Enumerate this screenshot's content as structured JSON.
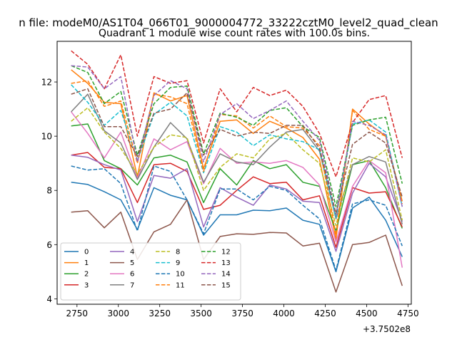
{
  "figure": {
    "suptitle": "n file: modeM0/AS1T04_066T01_9000004772_33222cztM0_level2_quad_clean",
    "title": "Quadrant 1 module wise count rates with 100.0s bins.",
    "offset_label": "+3.7502e8"
  },
  "chart_data": {
    "type": "line",
    "title": "Quadrant 1 module wise count rates with 100.0s bins.",
    "xlabel": "",
    "ylabel": "",
    "xlim": [
      2630,
      4770
    ],
    "ylim": [
      3.8,
      13.5
    ],
    "x_offset": "+3.7502e8",
    "xticks": [
      2750,
      3000,
      3250,
      3500,
      3750,
      4000,
      4250,
      4500,
      4750
    ],
    "yticks": [
      4,
      6,
      8,
      10,
      12
    ],
    "legend_position": "lower-left",
    "x": [
      2715,
      2815,
      2915,
      3015,
      3115,
      3215,
      3315,
      3415,
      3515,
      3615,
      3715,
      3815,
      3915,
      4015,
      4115,
      4215,
      4315,
      4415,
      4515,
      4615,
      4715
    ],
    "series": [
      {
        "name": "0",
        "color": "#1f77b4",
        "dash": "solid",
        "values": [
          8.3,
          8.22,
          7.95,
          7.65,
          6.55,
          8.1,
          7.82,
          7.65,
          6.35,
          7.1,
          7.1,
          7.27,
          7.25,
          7.35,
          6.9,
          6.75,
          5.0,
          7.35,
          7.75,
          6.9,
          5.55
        ]
      },
      {
        "name": "1",
        "color": "#ff7f0e",
        "dash": "solid",
        "values": [
          12.45,
          11.95,
          11.25,
          11.2,
          8.5,
          11.6,
          11.3,
          11.5,
          8.8,
          10.55,
          10.6,
          10.1,
          10.55,
          10.3,
          9.95,
          9.15,
          6.2,
          11.0,
          10.45,
          10.0,
          7.6
        ]
      },
      {
        "name": "2",
        "color": "#2ca02c",
        "dash": "solid",
        "values": [
          10.38,
          10.45,
          9.1,
          8.8,
          8.2,
          9.2,
          9.3,
          9.05,
          7.55,
          8.8,
          8.2,
          9.1,
          8.8,
          8.95,
          8.3,
          8.15,
          6.5,
          8.95,
          9.1,
          8.1,
          6.6
        ]
      },
      {
        "name": "3",
        "color": "#d62728",
        "dash": "solid",
        "values": [
          9.3,
          9.4,
          8.85,
          8.8,
          7.55,
          8.95,
          9.0,
          8.7,
          7.3,
          7.45,
          8.0,
          8.5,
          8.25,
          8.3,
          7.65,
          7.8,
          5.9,
          8.1,
          7.9,
          7.95,
          6.65
        ]
      },
      {
        "name": "4",
        "color": "#9467bd",
        "dash": "solid",
        "values": [
          9.3,
          9.22,
          8.95,
          8.75,
          6.85,
          8.55,
          8.45,
          8.8,
          6.65,
          8.1,
          7.75,
          7.45,
          8.2,
          8.05,
          7.6,
          7.55,
          5.75,
          7.9,
          9.0,
          8.5,
          6.85
        ]
      },
      {
        "name": "5",
        "color": "#8c564b",
        "dash": "solid",
        "values": [
          7.2,
          7.25,
          6.62,
          7.2,
          5.45,
          6.47,
          6.75,
          7.65,
          5.45,
          6.3,
          6.4,
          6.38,
          6.45,
          6.43,
          5.95,
          6.05,
          4.25,
          6.0,
          6.08,
          6.35,
          4.48
        ]
      },
      {
        "name": "6",
        "color": "#e377c2",
        "dash": "solid",
        "values": [
          10.9,
          10.1,
          9.2,
          10.15,
          8.45,
          9.9,
          9.5,
          9.8,
          8.25,
          9.55,
          9.0,
          9.05,
          9.0,
          9.1,
          8.85,
          8.2,
          6.1,
          8.15,
          9.1,
          8.65,
          5.15
        ]
      },
      {
        "name": "7",
        "color": "#7f7f7f",
        "dash": "solid",
        "values": [
          10.9,
          11.55,
          10.2,
          9.75,
          8.4,
          9.6,
          10.5,
          9.9,
          8.3,
          9.35,
          9.05,
          8.95,
          9.6,
          10.15,
          10.25,
          9.45,
          6.95,
          8.95,
          9.25,
          9.05,
          6.75
        ]
      },
      {
        "name": "8",
        "color": "#bcbd22",
        "dash": "dashed",
        "values": [
          10.55,
          11.05,
          10.15,
          9.55,
          8.6,
          9.6,
          10.05,
          9.95,
          8.0,
          8.85,
          9.35,
          9.2,
          9.9,
          10.1,
          9.5,
          9.0,
          6.7,
          9.2,
          9.05,
          9.5,
          6.9
        ]
      },
      {
        "name": "9",
        "color": "#17becf",
        "dash": "dashed",
        "values": [
          11.9,
          11.25,
          10.4,
          10.95,
          9.1,
          10.8,
          11.25,
          10.75,
          8.65,
          10.35,
          10.15,
          9.65,
          10.05,
          9.9,
          9.8,
          9.5,
          7.0,
          10.45,
          10.6,
          10.15,
          7.4
        ]
      },
      {
        "name": "10",
        "color": "#1f77b4",
        "dash": "dashed",
        "values": [
          8.9,
          8.75,
          8.8,
          8.25,
          6.5,
          8.9,
          8.7,
          7.65,
          6.4,
          8.05,
          8.05,
          7.65,
          8.15,
          8.0,
          7.45,
          6.95,
          5.05,
          7.5,
          7.65,
          7.45,
          5.95
        ]
      },
      {
        "name": "11",
        "color": "#ff7f0e",
        "dash": "dashed",
        "values": [
          11.95,
          12.05,
          11.1,
          11.3,
          9.0,
          11.55,
          11.45,
          11.2,
          8.7,
          10.8,
          10.75,
          10.3,
          10.75,
          10.35,
          10.3,
          9.65,
          6.35,
          10.95,
          10.25,
          10.0,
          7.5
        ]
      },
      {
        "name": "12",
        "color": "#2ca02c",
        "dash": "dashed",
        "values": [
          12.6,
          12.35,
          11.2,
          11.65,
          9.3,
          11.2,
          11.8,
          11.85,
          9.35,
          10.85,
          10.7,
          10.4,
          10.95,
          11.05,
          10.35,
          9.95,
          7.4,
          10.4,
          10.6,
          10.7,
          8.25
        ]
      },
      {
        "name": "13",
        "color": "#d62728",
        "dash": "dashed",
        "values": [
          13.15,
          12.65,
          11.75,
          13.0,
          10.0,
          12.2,
          11.95,
          12.05,
          9.75,
          11.75,
          10.9,
          11.8,
          11.5,
          11.7,
          11.1,
          10.1,
          8.5,
          10.5,
          11.35,
          11.5,
          9.2
        ]
      },
      {
        "name": "14",
        "color": "#9467bd",
        "dash": "dashed",
        "values": [
          12.6,
          12.55,
          11.75,
          12.2,
          9.05,
          11.5,
          12.05,
          11.75,
          9.05,
          10.8,
          11.2,
          10.65,
          10.95,
          11.3,
          10.55,
          9.85,
          7.1,
          10.55,
          10.4,
          10.05,
          7.4
        ]
      },
      {
        "name": "15",
        "color": "#8c564b",
        "dash": "dashed",
        "values": [
          11.55,
          11.75,
          10.35,
          10.35,
          9.25,
          10.85,
          11.0,
          11.6,
          9.3,
          10.25,
          10.0,
          10.15,
          10.1,
          10.4,
          10.4,
          9.55,
          7.15,
          9.7,
          10.15,
          9.75,
          7.75
        ]
      }
    ]
  }
}
